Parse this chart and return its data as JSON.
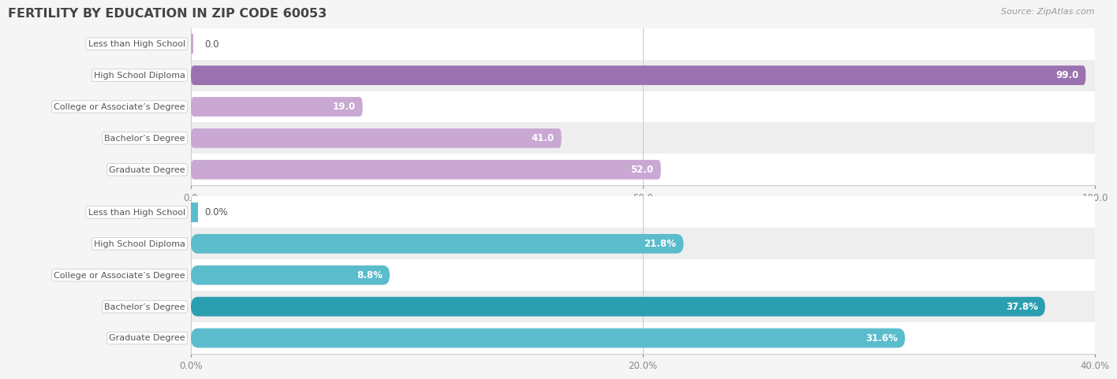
{
  "title": "FERTILITY BY EDUCATION IN ZIP CODE 60053",
  "source": "Source: ZipAtlas.com",
  "top_chart": {
    "categories": [
      "Less than High School",
      "High School Diploma",
      "College or Associate’s Degree",
      "Bachelor’s Degree",
      "Graduate Degree"
    ],
    "values": [
      0.0,
      99.0,
      19.0,
      41.0,
      52.0
    ],
    "xlim": [
      0,
      100
    ],
    "xticks": [
      0.0,
      50.0,
      100.0
    ],
    "xtick_labels": [
      "0.0",
      "50.0",
      "100.0"
    ],
    "bar_color_normal": "#c9a8d4",
    "bar_color_highlight": "#9b72b0",
    "highlight_indices": [
      1
    ],
    "value_labels": [
      "0.0",
      "99.0",
      "19.0",
      "41.0",
      "52.0"
    ]
  },
  "bottom_chart": {
    "categories": [
      "Less than High School",
      "High School Diploma",
      "College or Associate’s Degree",
      "Bachelor’s Degree",
      "Graduate Degree"
    ],
    "values": [
      0.0,
      21.8,
      8.8,
      37.8,
      31.6
    ],
    "xlim": [
      0,
      40
    ],
    "xticks": [
      0.0,
      20.0,
      40.0
    ],
    "xtick_labels": [
      "0.0%",
      "20.0%",
      "40.0%"
    ],
    "bar_color_normal": "#5bbccc",
    "bar_color_highlight": "#2a9fb0",
    "highlight_indices": [
      3
    ],
    "value_labels": [
      "0.0%",
      "21.8%",
      "8.8%",
      "37.8%",
      "31.6%"
    ]
  },
  "bar_height": 0.62,
  "bg_color": "#f5f5f5",
  "row_colors": [
    "#ffffff",
    "#eeeeee"
  ],
  "title_color": "#444444",
  "source_color": "#999999"
}
